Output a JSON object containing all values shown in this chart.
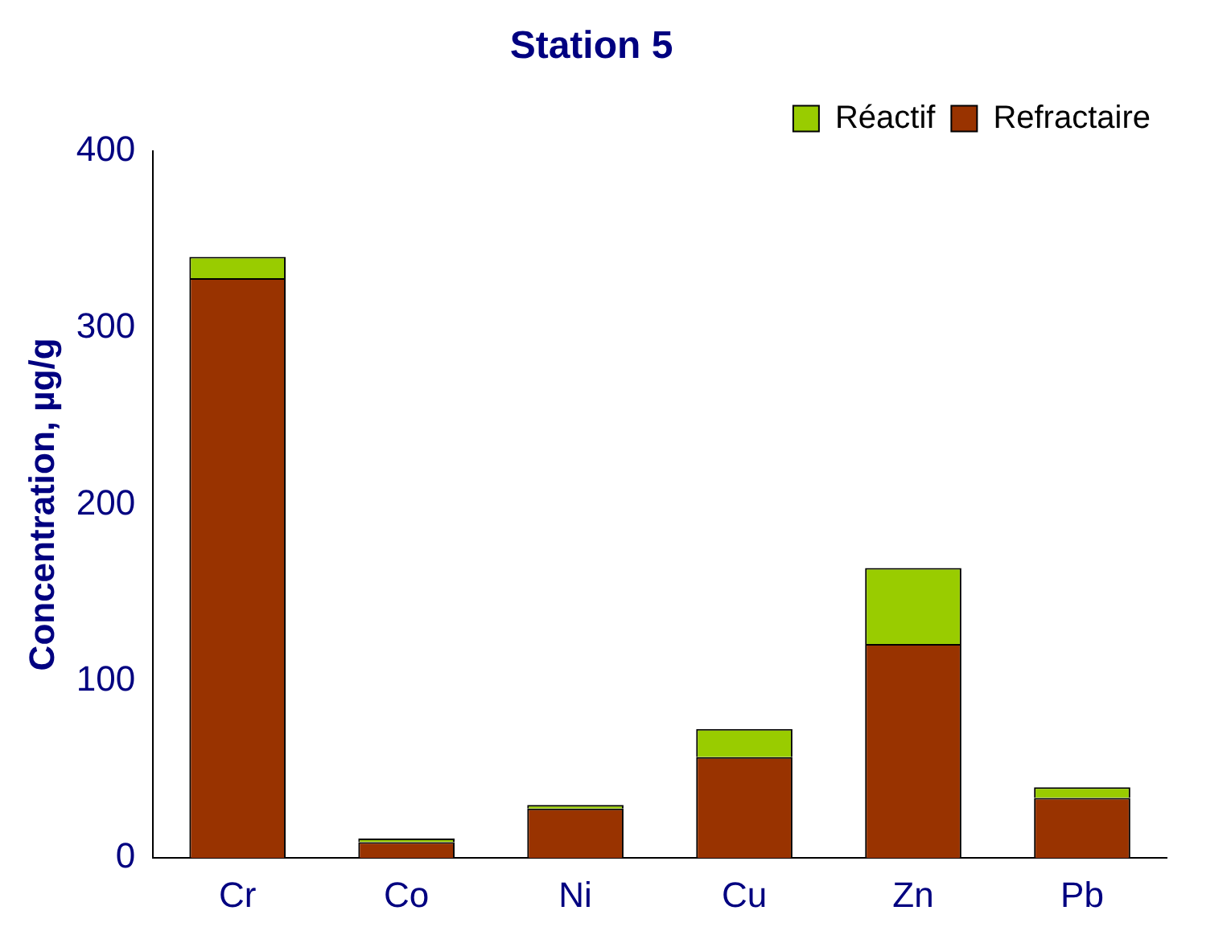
{
  "chart_data": {
    "type": "bar",
    "title": "Station 5",
    "ylabel": "Concentration, µg/g",
    "categories": [
      "Cr",
      "Co",
      "Ni",
      "Cu",
      "Zn",
      "Pb"
    ],
    "stacked": true,
    "ylim": [
      0,
      400
    ],
    "yticks": [
      0,
      100,
      200,
      300,
      400
    ],
    "grid": false,
    "legend": "top right",
    "series": [
      {
        "name": "Refractaire",
        "color": "#993300",
        "values": [
          328,
          9,
          28,
          57,
          121,
          34
        ]
      },
      {
        "name": "Réactif",
        "color": "#99cc00",
        "values": [
          12,
          2,
          2,
          16,
          43,
          6
        ]
      }
    ]
  }
}
